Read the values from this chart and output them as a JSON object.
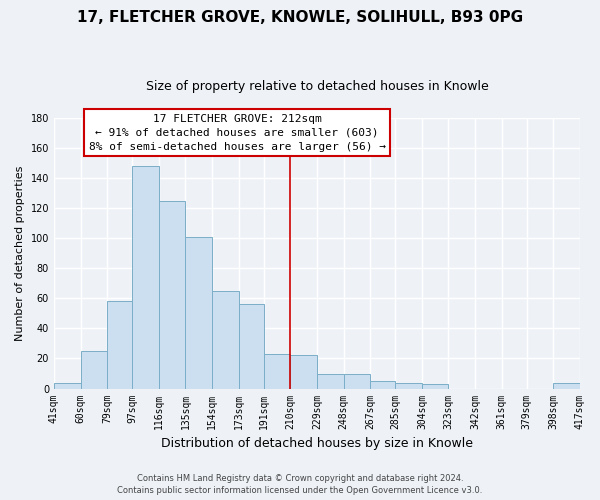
{
  "title": "17, FLETCHER GROVE, KNOWLE, SOLIHULL, B93 0PG",
  "subtitle": "Size of property relative to detached houses in Knowle",
  "xlabel": "Distribution of detached houses by size in Knowle",
  "ylabel": "Number of detached properties",
  "bar_edges": [
    41,
    60,
    79,
    97,
    116,
    135,
    154,
    173,
    191,
    210,
    229,
    248,
    267,
    285,
    304,
    323,
    342,
    361,
    379,
    398,
    417
  ],
  "bar_heights": [
    4,
    25,
    58,
    148,
    125,
    101,
    65,
    56,
    23,
    22,
    10,
    10,
    5,
    4,
    3,
    0,
    0,
    0,
    0,
    4
  ],
  "bar_color": "#ccdff0",
  "bar_edge_color": "#7aaec8",
  "x_tick_labels": [
    "41sqm",
    "60sqm",
    "79sqm",
    "97sqm",
    "116sqm",
    "135sqm",
    "154sqm",
    "173sqm",
    "191sqm",
    "210sqm",
    "229sqm",
    "248sqm",
    "267sqm",
    "285sqm",
    "304sqm",
    "323sqm",
    "342sqm",
    "361sqm",
    "379sqm",
    "398sqm",
    "417sqm"
  ],
  "ylim": [
    0,
    180
  ],
  "yticks": [
    0,
    20,
    40,
    60,
    80,
    100,
    120,
    140,
    160,
    180
  ],
  "vline_x": 210,
  "vline_color": "#cc0000",
  "annotation_title": "17 FLETCHER GROVE: 212sqm",
  "annotation_line1": "← 91% of detached houses are smaller (603)",
  "annotation_line2": "8% of semi-detached houses are larger (56) →",
  "annotation_box_facecolor": "#ffffff",
  "annotation_box_edgecolor": "#cc0000",
  "footer1": "Contains HM Land Registry data © Crown copyright and database right 2024.",
  "footer2": "Contains public sector information licensed under the Open Government Licence v3.0.",
  "background_color": "#eef2f7",
  "grid_color": "#ffffff",
  "title_fontsize": 11,
  "subtitle_fontsize": 9,
  "ylabel_fontsize": 8,
  "xlabel_fontsize": 9,
  "tick_fontsize": 7,
  "annotation_fontsize": 8,
  "footer_fontsize": 6
}
